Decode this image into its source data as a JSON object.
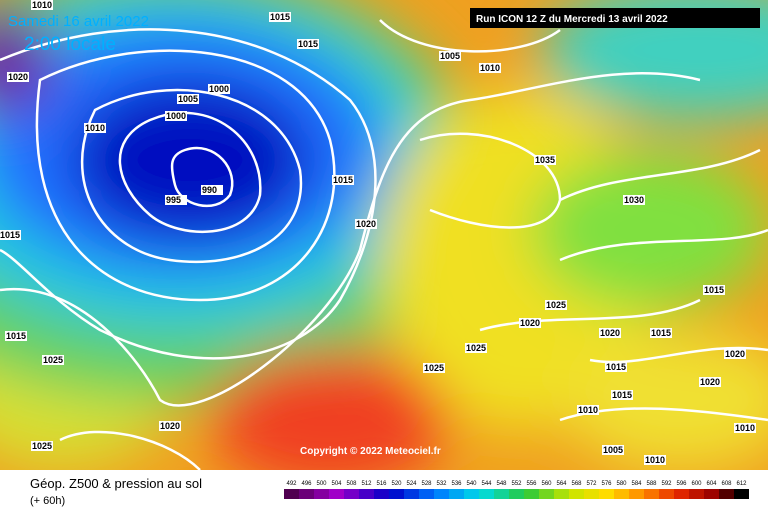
{
  "header": {
    "date": "Samedi 16 avril 2022",
    "time": "2:00 locale",
    "run": "Run ICON 12 Z du Mercredi 13 avril 2022"
  },
  "copyright": "Copyright © 2022 Meteociel.fr",
  "footer": {
    "title": "Géop. Z500 & pression au sol",
    "lead": "(+ 60h)"
  },
  "isobars": {
    "labels": [
      "1015",
      "1015",
      "1005",
      "1010",
      "1010",
      "1020",
      "1005",
      "1000",
      "1000",
      "1010",
      "995",
      "990",
      "1015",
      "1020",
      "1035",
      "1030",
      "1015",
      "1015",
      "1025",
      "1020",
      "1020",
      "1015",
      "1015",
      "1025",
      "1025",
      "1025",
      "1020",
      "1015",
      "1020",
      "1015",
      "1010",
      "1020",
      "1010",
      "1025",
      "1005",
      "1010"
    ]
  },
  "legend": {
    "ticks": [
      492,
      496,
      500,
      504,
      508,
      512,
      516,
      520,
      524,
      528,
      532,
      536,
      540,
      544,
      548,
      552,
      556,
      560,
      564,
      568,
      572,
      576,
      580,
      584,
      588,
      592,
      596,
      600,
      604,
      608,
      612
    ]
  }
}
